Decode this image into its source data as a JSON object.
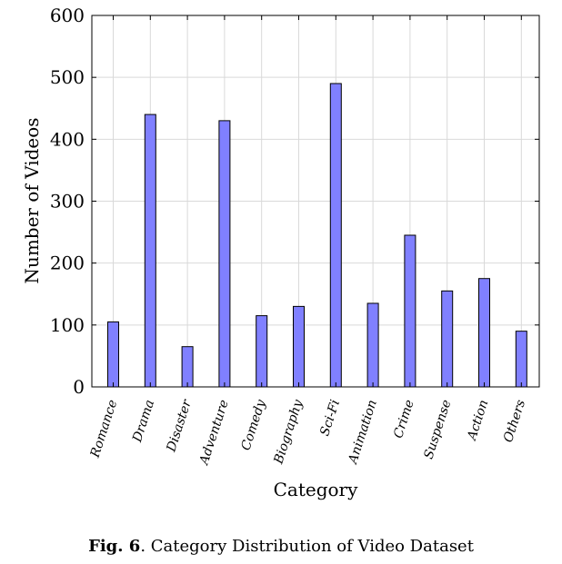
{
  "chart_data": {
    "type": "bar",
    "categories": [
      "Romance",
      "Drama",
      "Disaster",
      "Adventure",
      "Comedy",
      "Biography",
      "Sci-Fi",
      "Animation",
      "Crime",
      "Suspense",
      "Action",
      "Others"
    ],
    "values": [
      105,
      440,
      65,
      430,
      115,
      130,
      490,
      135,
      245,
      155,
      175,
      90
    ],
    "xlabel": "Category",
    "ylabel": "Number of Videos",
    "ylim": [
      0,
      600
    ],
    "yticks": [
      0,
      100,
      200,
      300,
      400,
      500,
      600
    ],
    "grid": true,
    "bar_color": "#8080ff"
  },
  "caption": {
    "label": "Fig. 6",
    "text": ". Category Distribution of Video Dataset"
  }
}
